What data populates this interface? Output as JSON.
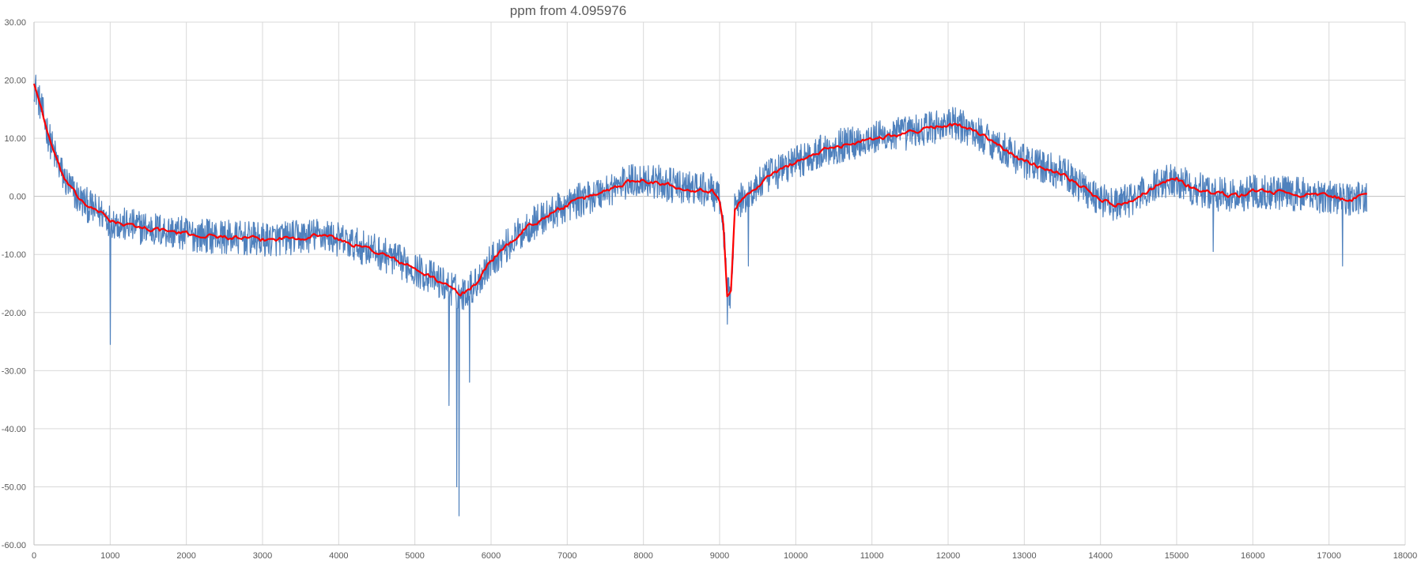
{
  "chart_data": {
    "type": "line",
    "title": "ppm from 4.095976",
    "xlabel": "",
    "ylabel": "",
    "xlim": [
      0,
      18000
    ],
    "ylim": [
      -60,
      30
    ],
    "x_ticks": [
      0,
      1000,
      2000,
      3000,
      4000,
      5000,
      6000,
      7000,
      8000,
      9000,
      10000,
      11000,
      12000,
      13000,
      14000,
      15000,
      16000,
      17000,
      18000
    ],
    "y_ticks": [
      -60,
      -50,
      -40,
      -30,
      -20,
      -10,
      0,
      10,
      20,
      30
    ],
    "x_tick_labels": [
      "0",
      "1000",
      "2000",
      "3000",
      "4000",
      "5000",
      "6000",
      "7000",
      "8000",
      "9000",
      "10000",
      "11000",
      "12000",
      "13000",
      "14000",
      "15000",
      "16000",
      "17000",
      "18000"
    ],
    "y_tick_labels": [
      "-60.00",
      "-50.00",
      "-40.00",
      "-30.00",
      "-20.00",
      "-10.00",
      "0.00",
      "10.00",
      "20.00",
      "30.00"
    ],
    "grid": true,
    "legend": "none",
    "series": [
      {
        "color": "#4f81bd",
        "style": "noisy",
        "trend_x": [
          0,
          100,
          200,
          300,
          400,
          500,
          600,
          700,
          800,
          900,
          1000,
          1200,
          1500,
          2000,
          2500,
          3000,
          3500,
          3800,
          4000,
          4500,
          5000,
          5300,
          5500,
          5600,
          5800,
          6000,
          6500,
          7000,
          7500,
          7800,
          8000,
          8500,
          8900,
          9000,
          9050,
          9100,
          9150,
          9200,
          9250,
          9400,
          9600,
          10000,
          10500,
          11000,
          11500,
          12000,
          12200,
          12500,
          13000,
          13500,
          14000,
          14200,
          14500,
          14800,
          15000,
          15200,
          15500,
          15800,
          16000,
          16500,
          17000,
          17200,
          17500
        ],
        "trend_y": [
          19.5,
          15,
          10,
          6,
          3,
          1,
          -0.5,
          -1.5,
          -2.5,
          -3,
          -4,
          -5,
          -5.5,
          -6.5,
          -7,
          -7.5,
          -7,
          -6.5,
          -7.5,
          -9.5,
          -12.5,
          -14.5,
          -16,
          -17,
          -15,
          -11,
          -5,
          -1.5,
          1,
          2.5,
          3,
          1.5,
          1,
          -1,
          -5,
          -17,
          -16,
          -2,
          -1,
          0.5,
          3,
          6,
          8.5,
          10,
          11,
          12.5,
          12,
          10,
          6,
          4,
          -0.5,
          -1.5,
          0,
          2.5,
          3,
          1.5,
          0.5,
          0,
          1,
          0.5,
          0,
          -0.5,
          0
        ],
        "noise_amplitude": 3,
        "spikes": [
          {
            "x": 1000,
            "y": -25.5
          },
          {
            "x": 5450,
            "y": -36
          },
          {
            "x": 5550,
            "y": -50
          },
          {
            "x": 5580,
            "y": -55
          },
          {
            "x": 5720,
            "y": -32
          },
          {
            "x": 9100,
            "y": -22
          },
          {
            "x": 9380,
            "y": -12
          },
          {
            "x": 15480,
            "y": -9.5
          },
          {
            "x": 17180,
            "y": -12
          }
        ]
      },
      {
        "color": "#ff0000",
        "style": "smooth",
        "trend_x": [
          0,
          100,
          200,
          300,
          400,
          500,
          600,
          700,
          800,
          900,
          1000,
          1200,
          1500,
          2000,
          2500,
          3000,
          3500,
          3800,
          4000,
          4500,
          5000,
          5300,
          5500,
          5600,
          5800,
          6000,
          6500,
          7000,
          7500,
          7800,
          8000,
          8500,
          8900,
          9000,
          9050,
          9100,
          9150,
          9200,
          9250,
          9400,
          9600,
          10000,
          10500,
          11000,
          11500,
          12000,
          12200,
          12500,
          13000,
          13500,
          14000,
          14200,
          14500,
          14800,
          15000,
          15200,
          15500,
          15800,
          16000,
          16500,
          17000,
          17200,
          17500
        ],
        "trend_y": [
          19.5,
          15,
          10,
          6,
          3,
          1,
          -0.5,
          -1.5,
          -2.5,
          -3,
          -4,
          -5,
          -5.5,
          -6.5,
          -7,
          -7.5,
          -7,
          -6.5,
          -7.5,
          -9.5,
          -12.5,
          -14.5,
          -16,
          -17,
          -15,
          -11,
          -5,
          -1.5,
          1,
          2.5,
          3,
          1.5,
          1,
          -1,
          -5,
          -17,
          -16,
          -2,
          -1,
          0.5,
          3,
          6,
          8.5,
          10,
          11,
          12.5,
          12,
          10,
          6,
          4,
          -0.5,
          -1.5,
          0,
          2.5,
          3,
          1.5,
          0.5,
          0,
          1,
          0.5,
          0,
          -0.5,
          0
        ],
        "noise_amplitude": 0.8
      }
    ]
  }
}
